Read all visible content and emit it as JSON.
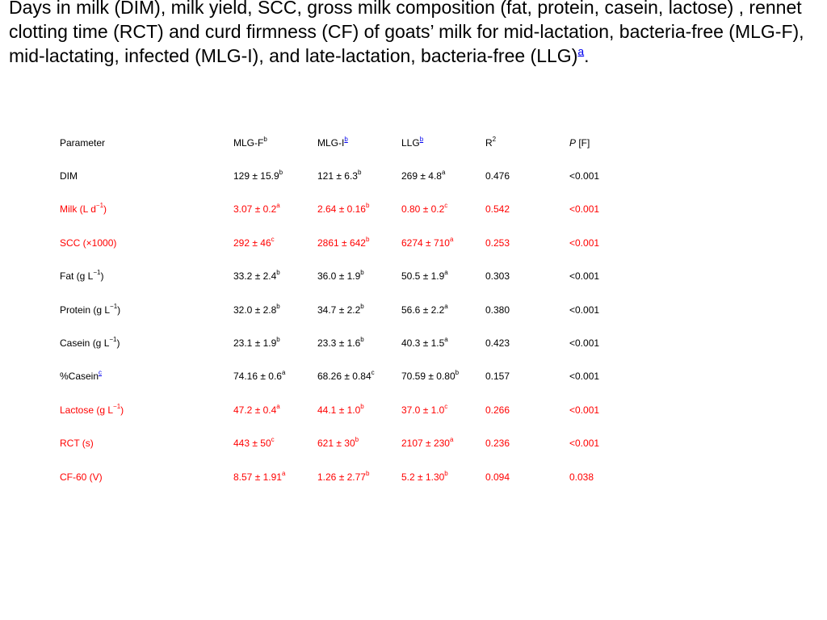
{
  "caption": {
    "text": "Days in milk (DIM), milk yield, SCC, gross milk composition (fat, protein, casein, lactose) , rennet clotting time (RCT) and curd firmness (CF) of goats’ milk for mid-lactation, bacteria-free (MLG-F), mid-lactating, infected (MLG-I), and late-lactation, bacteria-free (LLG)",
    "footnote_marker": "a",
    "end": "."
  },
  "table": {
    "headers": {
      "parameter": "Parameter",
      "mlgf": "MLG-F",
      "mlgf_sup": "b",
      "mlgi": "MLG-I",
      "mlgi_sup": "b",
      "llg": "LLG",
      "llg_sup": "b",
      "r2": "R",
      "r2_sup": "2",
      "p_italic": "P",
      "p_rest": " [F]"
    },
    "highlight_color": "#ff0000",
    "rows": [
      {
        "param": "DIM",
        "param_sup": "",
        "param_end": "",
        "mlgf": "129 ± 15.9",
        "mlgf_sup": "b",
        "mlgi": "121 ± 6.3",
        "mlgi_sup": "b",
        "llg": "269 ± 4.8",
        "llg_sup": "a",
        "r2": "0.476",
        "p": "<0.001"
      },
      {
        "param": "Milk (L d",
        "param_sup": "−1",
        "param_end": ")",
        "mlgf": "3.07 ± 0.2",
        "mlgf_sup": "a",
        "mlgi": "2.64 ± 0.16",
        "mlgi_sup": "b",
        "llg": "0.80 ± 0.2",
        "llg_sup": "c",
        "r2": "0.542",
        "p": "<0.001"
      },
      {
        "param": "SCC (×1000)",
        "param_sup": "",
        "param_end": "",
        "mlgf": "292 ± 46",
        "mlgf_sup": "c",
        "mlgi": "2861 ± 642",
        "mlgi_sup": "b",
        "llg": "6274 ± 710",
        "llg_sup": "a",
        "r2": "0.253",
        "p": "<0.001"
      },
      {
        "param": "Fat (g L",
        "param_sup": "−1",
        "param_end": ")",
        "mlgf": "33.2 ± 2.4",
        "mlgf_sup": "b",
        "mlgi": "36.0 ± 1.9",
        "mlgi_sup": "b",
        "llg": "50.5 ± 1.9",
        "llg_sup": "a",
        "r2": "0.303",
        "p": "<0.001"
      },
      {
        "param": "Protein (g L",
        "param_sup": "−1",
        "param_end": ")",
        "mlgf": "32.0 ± 2.8",
        "mlgf_sup": "b",
        "mlgi": "34.7 ± 2.2",
        "mlgi_sup": "b",
        "llg": "56.6 ± 2.2",
        "llg_sup": "a",
        "r2": "0.380",
        "p": "<0.001"
      },
      {
        "param": "Casein (g L",
        "param_sup": "−1",
        "param_end": ")",
        "mlgf": "23.1 ± 1.9",
        "mlgf_sup": "b",
        "mlgi": "23.3 ± 1.6",
        "mlgi_sup": "b",
        "llg": "40.3 ± 1.5",
        "llg_sup": "a",
        "r2": "0.423",
        "p": "<0.001"
      },
      {
        "param": "%Casein",
        "param_sup": "c",
        "param_end": "",
        "mlgf": "74.16 ± 0.6",
        "mlgf_sup": "a",
        "mlgi": "68.26 ± 0.84",
        "mlgi_sup": "c",
        "llg": "70.59 ± 0.80",
        "llg_sup": "b",
        "r2": "0.157",
        "p": "<0.001"
      },
      {
        "param": "Lactose (g L",
        "param_sup": "−1",
        "param_end": ")",
        "mlgf": "47.2 ± 0.4",
        "mlgf_sup": "a",
        "mlgi": "44.1 ± 1.0",
        "mlgi_sup": "b",
        "llg": "37.0 ± 1.0",
        "llg_sup": "c",
        "r2": "0.266",
        "p": "<0.001"
      },
      {
        "param": "RCT (s)",
        "param_sup": "",
        "param_end": "",
        "mlgf": "443 ± 50",
        "mlgf_sup": "c",
        "mlgi": "621 ± 30",
        "mlgi_sup": "b",
        "llg": "2107 ± 230",
        "llg_sup": "a",
        "r2": "0.236",
        "p": "<0.001"
      },
      {
        "param": "CF-60 (V)",
        "param_sup": "",
        "param_end": "",
        "mlgf": "8.57 ± 1.91",
        "mlgf_sup": "a",
        "mlgi": "1.26 ± 2.77",
        "mlgi_sup": "b",
        "llg": "5.2 ± 1.30",
        "llg_sup": "b",
        "r2": "0.094",
        "p": "0.038"
      }
    ]
  }
}
